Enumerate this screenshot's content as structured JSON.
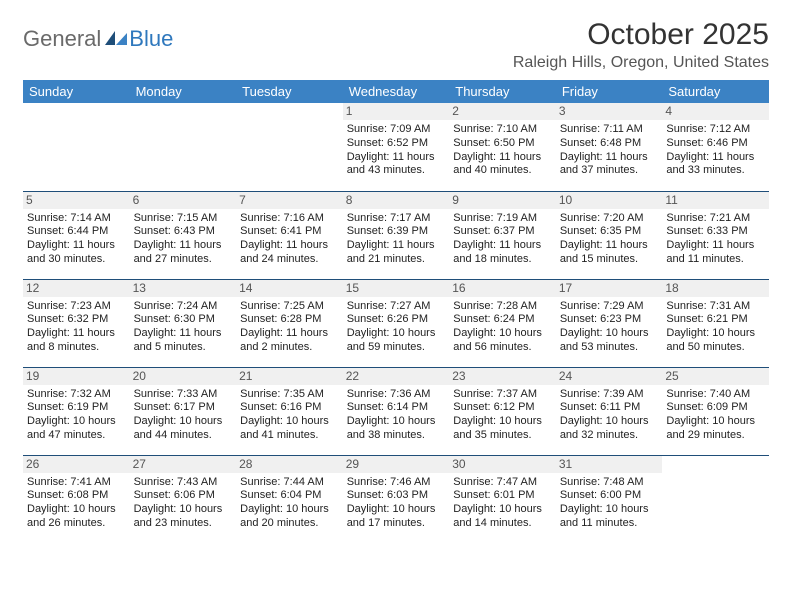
{
  "logo": {
    "text1": "General",
    "text2": "Blue"
  },
  "title": "October 2025",
  "location": "Raleigh Hills, Oregon, United States",
  "colors": {
    "header_bg": "#3b82c4",
    "header_text": "#ffffff",
    "border": "#1f4e79",
    "daynum_bg": "#f0f0f0",
    "logo_gray": "#6a6a6a",
    "logo_blue": "#2f78bd"
  },
  "days": [
    "Sunday",
    "Monday",
    "Tuesday",
    "Wednesday",
    "Thursday",
    "Friday",
    "Saturday"
  ],
  "weeks": [
    [
      null,
      null,
      null,
      {
        "n": "1",
        "sr": "Sunrise: 7:09 AM",
        "ss": "Sunset: 6:52 PM",
        "d1": "Daylight: 11 hours",
        "d2": "and 43 minutes."
      },
      {
        "n": "2",
        "sr": "Sunrise: 7:10 AM",
        "ss": "Sunset: 6:50 PM",
        "d1": "Daylight: 11 hours",
        "d2": "and 40 minutes."
      },
      {
        "n": "3",
        "sr": "Sunrise: 7:11 AM",
        "ss": "Sunset: 6:48 PM",
        "d1": "Daylight: 11 hours",
        "d2": "and 37 minutes."
      },
      {
        "n": "4",
        "sr": "Sunrise: 7:12 AM",
        "ss": "Sunset: 6:46 PM",
        "d1": "Daylight: 11 hours",
        "d2": "and 33 minutes."
      }
    ],
    [
      {
        "n": "5",
        "sr": "Sunrise: 7:14 AM",
        "ss": "Sunset: 6:44 PM",
        "d1": "Daylight: 11 hours",
        "d2": "and 30 minutes."
      },
      {
        "n": "6",
        "sr": "Sunrise: 7:15 AM",
        "ss": "Sunset: 6:43 PM",
        "d1": "Daylight: 11 hours",
        "d2": "and 27 minutes."
      },
      {
        "n": "7",
        "sr": "Sunrise: 7:16 AM",
        "ss": "Sunset: 6:41 PM",
        "d1": "Daylight: 11 hours",
        "d2": "and 24 minutes."
      },
      {
        "n": "8",
        "sr": "Sunrise: 7:17 AM",
        "ss": "Sunset: 6:39 PM",
        "d1": "Daylight: 11 hours",
        "d2": "and 21 minutes."
      },
      {
        "n": "9",
        "sr": "Sunrise: 7:19 AM",
        "ss": "Sunset: 6:37 PM",
        "d1": "Daylight: 11 hours",
        "d2": "and 18 minutes."
      },
      {
        "n": "10",
        "sr": "Sunrise: 7:20 AM",
        "ss": "Sunset: 6:35 PM",
        "d1": "Daylight: 11 hours",
        "d2": "and 15 minutes."
      },
      {
        "n": "11",
        "sr": "Sunrise: 7:21 AM",
        "ss": "Sunset: 6:33 PM",
        "d1": "Daylight: 11 hours",
        "d2": "and 11 minutes."
      }
    ],
    [
      {
        "n": "12",
        "sr": "Sunrise: 7:23 AM",
        "ss": "Sunset: 6:32 PM",
        "d1": "Daylight: 11 hours",
        "d2": "and 8 minutes."
      },
      {
        "n": "13",
        "sr": "Sunrise: 7:24 AM",
        "ss": "Sunset: 6:30 PM",
        "d1": "Daylight: 11 hours",
        "d2": "and 5 minutes."
      },
      {
        "n": "14",
        "sr": "Sunrise: 7:25 AM",
        "ss": "Sunset: 6:28 PM",
        "d1": "Daylight: 11 hours",
        "d2": "and 2 minutes."
      },
      {
        "n": "15",
        "sr": "Sunrise: 7:27 AM",
        "ss": "Sunset: 6:26 PM",
        "d1": "Daylight: 10 hours",
        "d2": "and 59 minutes."
      },
      {
        "n": "16",
        "sr": "Sunrise: 7:28 AM",
        "ss": "Sunset: 6:24 PM",
        "d1": "Daylight: 10 hours",
        "d2": "and 56 minutes."
      },
      {
        "n": "17",
        "sr": "Sunrise: 7:29 AM",
        "ss": "Sunset: 6:23 PM",
        "d1": "Daylight: 10 hours",
        "d2": "and 53 minutes."
      },
      {
        "n": "18",
        "sr": "Sunrise: 7:31 AM",
        "ss": "Sunset: 6:21 PM",
        "d1": "Daylight: 10 hours",
        "d2": "and 50 minutes."
      }
    ],
    [
      {
        "n": "19",
        "sr": "Sunrise: 7:32 AM",
        "ss": "Sunset: 6:19 PM",
        "d1": "Daylight: 10 hours",
        "d2": "and 47 minutes."
      },
      {
        "n": "20",
        "sr": "Sunrise: 7:33 AM",
        "ss": "Sunset: 6:17 PM",
        "d1": "Daylight: 10 hours",
        "d2": "and 44 minutes."
      },
      {
        "n": "21",
        "sr": "Sunrise: 7:35 AM",
        "ss": "Sunset: 6:16 PM",
        "d1": "Daylight: 10 hours",
        "d2": "and 41 minutes."
      },
      {
        "n": "22",
        "sr": "Sunrise: 7:36 AM",
        "ss": "Sunset: 6:14 PM",
        "d1": "Daylight: 10 hours",
        "d2": "and 38 minutes."
      },
      {
        "n": "23",
        "sr": "Sunrise: 7:37 AM",
        "ss": "Sunset: 6:12 PM",
        "d1": "Daylight: 10 hours",
        "d2": "and 35 minutes."
      },
      {
        "n": "24",
        "sr": "Sunrise: 7:39 AM",
        "ss": "Sunset: 6:11 PM",
        "d1": "Daylight: 10 hours",
        "d2": "and 32 minutes."
      },
      {
        "n": "25",
        "sr": "Sunrise: 7:40 AM",
        "ss": "Sunset: 6:09 PM",
        "d1": "Daylight: 10 hours",
        "d2": "and 29 minutes."
      }
    ],
    [
      {
        "n": "26",
        "sr": "Sunrise: 7:41 AM",
        "ss": "Sunset: 6:08 PM",
        "d1": "Daylight: 10 hours",
        "d2": "and 26 minutes."
      },
      {
        "n": "27",
        "sr": "Sunrise: 7:43 AM",
        "ss": "Sunset: 6:06 PM",
        "d1": "Daylight: 10 hours",
        "d2": "and 23 minutes."
      },
      {
        "n": "28",
        "sr": "Sunrise: 7:44 AM",
        "ss": "Sunset: 6:04 PM",
        "d1": "Daylight: 10 hours",
        "d2": "and 20 minutes."
      },
      {
        "n": "29",
        "sr": "Sunrise: 7:46 AM",
        "ss": "Sunset: 6:03 PM",
        "d1": "Daylight: 10 hours",
        "d2": "and 17 minutes."
      },
      {
        "n": "30",
        "sr": "Sunrise: 7:47 AM",
        "ss": "Sunset: 6:01 PM",
        "d1": "Daylight: 10 hours",
        "d2": "and 14 minutes."
      },
      {
        "n": "31",
        "sr": "Sunrise: 7:48 AM",
        "ss": "Sunset: 6:00 PM",
        "d1": "Daylight: 10 hours",
        "d2": "and 11 minutes."
      },
      null
    ]
  ]
}
